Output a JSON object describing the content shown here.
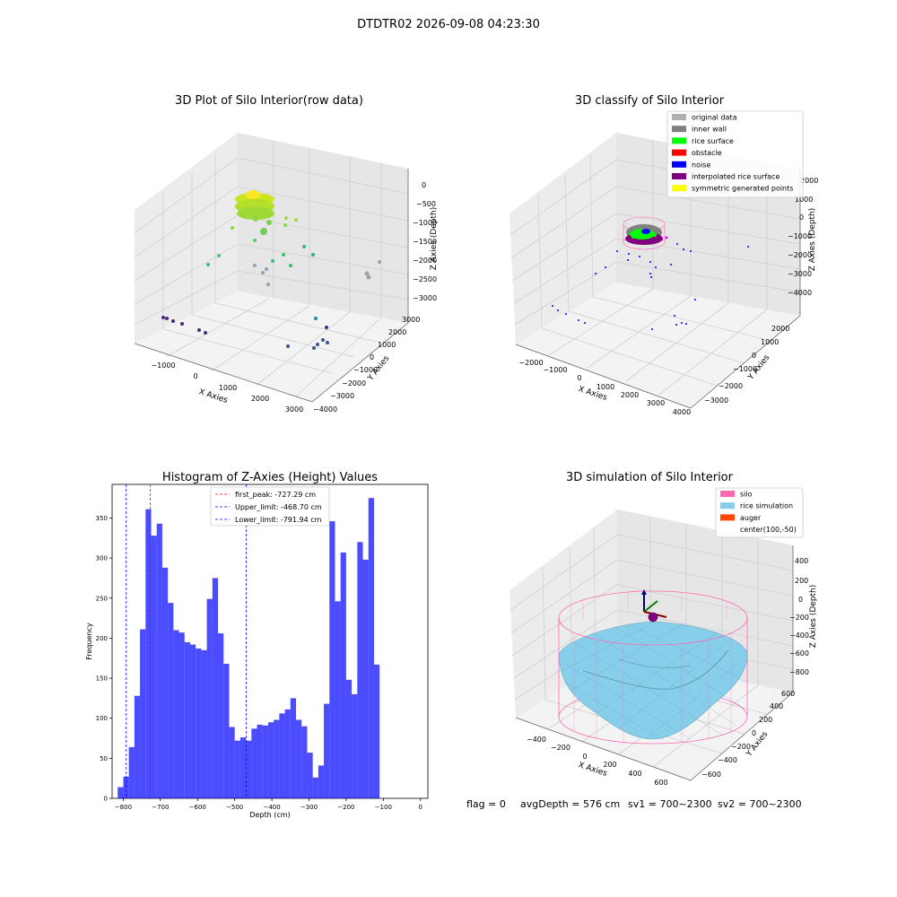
{
  "figure_title": "DTDTR02 2026-09-08 04:23:30",
  "panels": {
    "raw": {
      "title": "3D Plot of Silo Interior(row data)",
      "xlabel": "X Axies",
      "ylabel": "Y Axies",
      "zlabel": "Z Axies (Depth)",
      "xticks": [
        "−1000",
        "0",
        "1000",
        "2000",
        "3000"
      ],
      "yticks": [
        "−4000",
        "−3000",
        "−2000",
        "−1000",
        "0",
        "1000",
        "2000",
        "3000"
      ],
      "zticks": [
        "0",
        "−500",
        "−1000",
        "−1500",
        "−2000",
        "−2500",
        "−3000"
      ]
    },
    "classify": {
      "title": "3D classify of Silo Interior",
      "xlabel": "X Axies",
      "ylabel": "Y Axies",
      "zlabel": "Z Axies (Depth)",
      "xticks": [
        "−2000",
        "−1000",
        "0",
        "1000",
        "2000",
        "3000",
        "4000"
      ],
      "yticks": [
        "−3000",
        "−2000",
        "−1000",
        "0",
        "1000",
        "2000"
      ],
      "zticks": [
        "2000",
        "1000",
        "0",
        "−1000",
        "−2000",
        "−3000",
        "−4000"
      ],
      "legend": [
        {
          "label": "original data",
          "color": "#b0b0b0"
        },
        {
          "label": "inner wall",
          "color": "#808080"
        },
        {
          "label": "rice surface",
          "color": "#00ff00"
        },
        {
          "label": "obstacle",
          "color": "#ff0000"
        },
        {
          "label": "noise",
          "color": "#0000ff"
        },
        {
          "label": "interpolated rice surface",
          "color": "#800080"
        },
        {
          "label": "symmetric generated points",
          "color": "#ffff00"
        }
      ]
    },
    "simulation": {
      "title": "3D simulation of Silo Interior",
      "xlabel": "X Axies",
      "ylabel": "Y Axies",
      "zlabel": "Z Axies (Depth)",
      "xticks": [
        "−400",
        "−200",
        "0",
        "200",
        "400",
        "600"
      ],
      "yticks": [
        "−600",
        "−400",
        "−200",
        "0",
        "200",
        "400",
        "600"
      ],
      "zticks": [
        "400",
        "200",
        "0",
        "−200",
        "−400",
        "−600",
        "−800"
      ],
      "legend": [
        {
          "label": "silo",
          "color": "#ff69b4"
        },
        {
          "label": "rice simulation",
          "color": "#87ceeb"
        },
        {
          "label": "auger",
          "color": "#ff4500"
        },
        {
          "label": "center(100,-50)",
          "color": ""
        }
      ],
      "status": {
        "flag": "flag = 0",
        "avg_depth": "avgDepth = 576 cm",
        "sv1": "sv1 = 700~2300",
        "sv2": "sv2 = 700~2300"
      }
    }
  },
  "chart_data": [
    {
      "type": "bar",
      "title": "Histogram of Z-Axies (Height) Values",
      "xlabel": "Depth (cm)",
      "ylabel": "Frequency",
      "xlim": [
        -830,
        20
      ],
      "ylim": [
        0,
        392
      ],
      "bar_color": "#0000ff",
      "bin_start": -815,
      "bin_width": 15,
      "values": [
        14,
        27,
        64,
        128,
        211,
        361,
        328,
        343,
        288,
        244,
        210,
        207,
        195,
        192,
        187,
        185,
        249,
        275,
        206,
        168,
        89,
        72,
        76,
        72,
        87,
        92,
        91,
        95,
        98,
        106,
        111,
        125,
        98,
        90,
        57,
        26,
        41,
        118,
        346,
        246,
        307,
        148,
        130,
        320,
        298,
        375,
        167
      ],
      "xticks": [
        -800,
        -700,
        -600,
        -500,
        -400,
        -300,
        -200,
        -100,
        0
      ],
      "yticks": [
        0,
        50,
        100,
        150,
        200,
        250,
        300,
        350
      ],
      "vlines": [
        {
          "x": -727.29,
          "color": "#ff0000",
          "label": "first_peak: -727.29 cm"
        },
        {
          "x": -468.7,
          "color": "#0000ff",
          "label": "Upper_limit: -468.70 cm"
        },
        {
          "x": -791.94,
          "color": "#0000ff",
          "label": "Lower_limit: -791.94 cm"
        }
      ],
      "legend_position": "top-center",
      "grid": false
    }
  ]
}
